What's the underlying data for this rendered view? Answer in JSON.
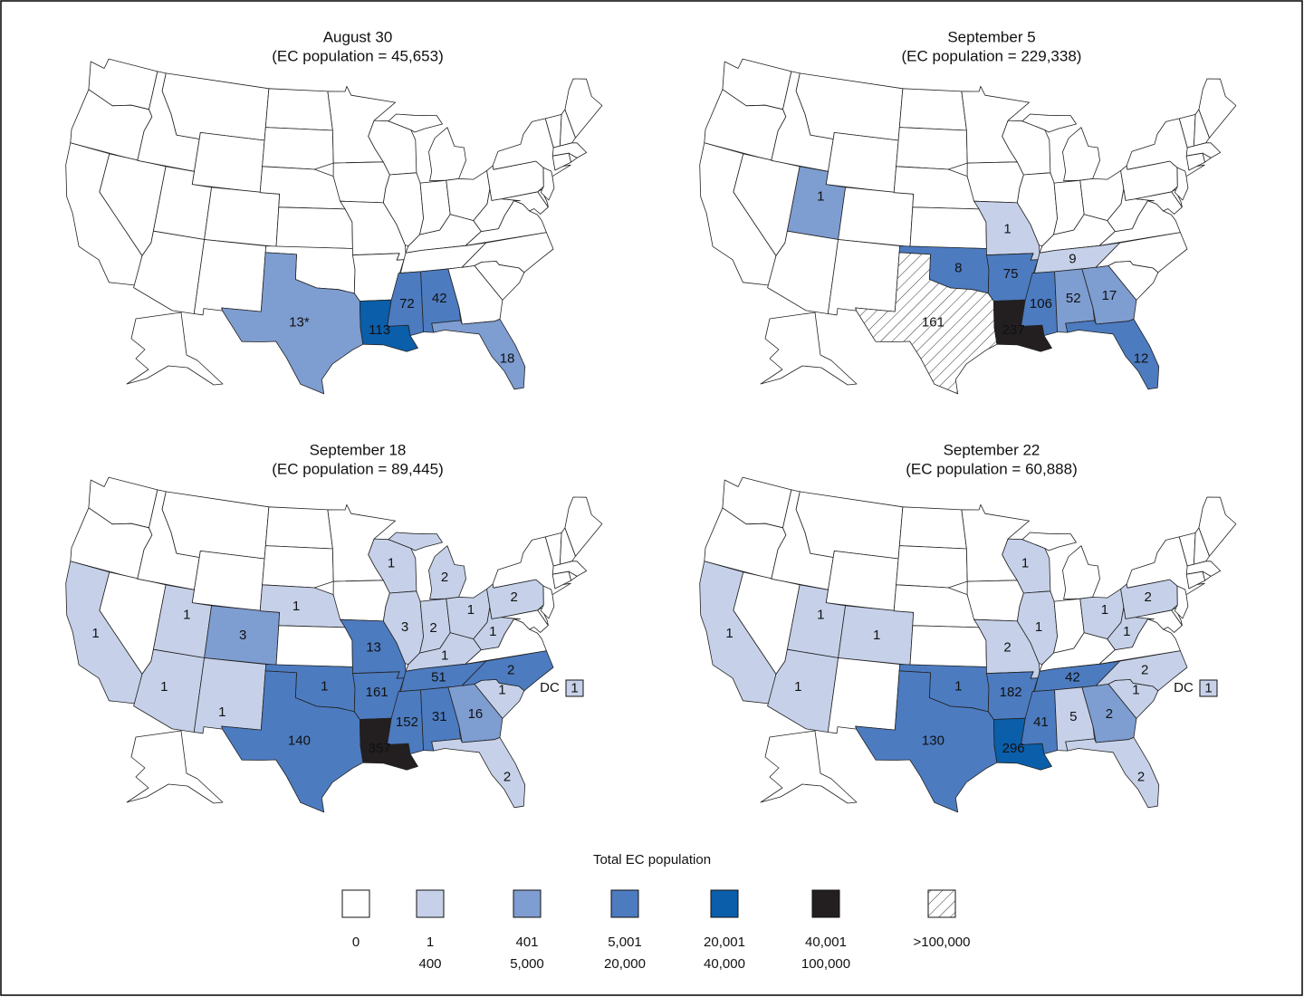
{
  "maps": [
    {
      "title": "August 30",
      "subtitle": "(EC population = 45,653)",
      "regions": [
        {
          "label": "13*",
          "level": 2
        },
        {
          "label": "113",
          "level": 4
        },
        {
          "label": "72",
          "level": 3
        },
        {
          "label": "42",
          "level": 3
        },
        {
          "label": "18",
          "level": 2
        }
      ]
    },
    {
      "title": "September 5",
      "subtitle": "(EC population = 229,338)",
      "regions": [
        {
          "label": "1",
          "level": 2
        },
        {
          "label": "1",
          "level": 1
        },
        {
          "label": "8",
          "level": 3
        },
        {
          "label": "75",
          "level": 3
        },
        {
          "label": "9",
          "level": 1
        },
        {
          "label": "161",
          "level": 6
        },
        {
          "label": "237",
          "level": 5
        },
        {
          "label": "106",
          "level": 3
        },
        {
          "label": "52",
          "level": 2
        },
        {
          "label": "17",
          "level": 2
        },
        {
          "label": "12",
          "level": 3
        }
      ]
    },
    {
      "title": "September 18",
      "subtitle": "(EC population = 89,445)",
      "regions": [
        {
          "label": "1",
          "level": 1
        },
        {
          "label": "1",
          "level": 1
        },
        {
          "label": "3",
          "level": 2
        },
        {
          "label": "1",
          "level": 1
        },
        {
          "label": "1",
          "level": 1
        },
        {
          "label": "1",
          "level": 1
        },
        {
          "label": "1",
          "level": 1
        },
        {
          "label": "2",
          "level": 1
        },
        {
          "label": "3",
          "level": 1
        },
        {
          "label": "2",
          "level": 1
        },
        {
          "label": "1",
          "level": 1
        },
        {
          "label": "2",
          "level": 1
        },
        {
          "label": "1",
          "level": 1
        },
        {
          "label": "1",
          "level": 1
        },
        {
          "label": "13",
          "level": 3
        },
        {
          "label": "1",
          "level": 3
        },
        {
          "label": "140",
          "level": 3
        },
        {
          "label": "161",
          "level": 3
        },
        {
          "label": "51",
          "level": 3
        },
        {
          "label": "2",
          "level": 3
        },
        {
          "label": "1",
          "level": 1
        },
        {
          "label": "16",
          "level": 2
        },
        {
          "label": "31",
          "level": 3
        },
        {
          "label": "152",
          "level": 3
        },
        {
          "label": "357",
          "level": 5
        },
        {
          "label": "2",
          "level": 1
        }
      ],
      "dc": {
        "name": "DC",
        "label": "1",
        "level": 1
      }
    },
    {
      "title": "September 22",
      "subtitle": "(EC population = 60,888)",
      "regions": [
        {
          "label": "1",
          "level": 1
        },
        {
          "label": "1",
          "level": 1
        },
        {
          "label": "1",
          "level": 1
        },
        {
          "label": "1",
          "level": 1
        },
        {
          "label": "1",
          "level": 1
        },
        {
          "label": "1",
          "level": 1
        },
        {
          "label": "2",
          "level": 1
        },
        {
          "label": "1",
          "level": 1
        },
        {
          "label": "2",
          "level": 1
        },
        {
          "label": "1",
          "level": 1
        },
        {
          "label": "1",
          "level": 3
        },
        {
          "label": "182",
          "level": 3
        },
        {
          "label": "130",
          "level": 3
        },
        {
          "label": "42",
          "level": 3
        },
        {
          "label": "2",
          "level": 1
        },
        {
          "label": "1",
          "level": 1
        },
        {
          "label": "2",
          "level": 2
        },
        {
          "label": "41",
          "level": 3
        },
        {
          "label": "5",
          "level": 1
        },
        {
          "label": "296",
          "level": 4
        },
        {
          "label": "2",
          "level": 1
        }
      ],
      "dc": {
        "name": "DC",
        "label": "1",
        "level": 1
      }
    }
  ],
  "legend": {
    "title": "Total EC population",
    "colors": [
      "#ffffff",
      "#c6d1e9",
      "#7e9dd1",
      "#4c7bc0",
      "#0a5eaa",
      "#231f20",
      "hatch"
    ],
    "items": [
      [
        "0"
      ],
      [
        "1",
        "400"
      ],
      [
        "401",
        "5,000"
      ],
      [
        "5,001",
        "20,000"
      ],
      [
        "20,001",
        "40,000"
      ],
      [
        "40,001",
        "100,000"
      ],
      [
        ">100,000"
      ]
    ]
  }
}
